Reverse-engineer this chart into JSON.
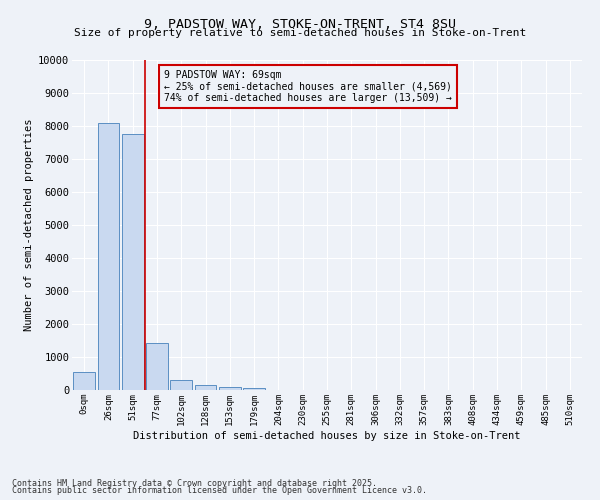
{
  "title1": "9, PADSTOW WAY, STOKE-ON-TRENT, ST4 8SU",
  "title2": "Size of property relative to semi-detached houses in Stoke-on-Trent",
  "xlabel": "Distribution of semi-detached houses by size in Stoke-on-Trent",
  "ylabel": "Number of semi-detached properties",
  "bar_labels": [
    "0sqm",
    "26sqm",
    "51sqm",
    "77sqm",
    "102sqm",
    "128sqm",
    "153sqm",
    "179sqm",
    "204sqm",
    "230sqm",
    "255sqm",
    "281sqm",
    "306sqm",
    "332sqm",
    "357sqm",
    "383sqm",
    "408sqm",
    "434sqm",
    "459sqm",
    "485sqm",
    "510sqm"
  ],
  "bar_values": [
    560,
    8100,
    7750,
    1430,
    310,
    150,
    100,
    50,
    0,
    0,
    0,
    0,
    0,
    0,
    0,
    0,
    0,
    0,
    0,
    0,
    0
  ],
  "bar_color": "#c9d9f0",
  "bar_edge_color": "#5a8fc3",
  "property_line_x": 2.5,
  "property_sqm": 69,
  "pct_smaller": 25,
  "n_smaller": 4569,
  "pct_larger": 74,
  "n_larger": 13509,
  "annotation_box_color": "#cc0000",
  "ylim": [
    0,
    10000
  ],
  "yticks": [
    0,
    1000,
    2000,
    3000,
    4000,
    5000,
    6000,
    7000,
    8000,
    9000,
    10000
  ],
  "footer1": "Contains HM Land Registry data © Crown copyright and database right 2025.",
  "footer2": "Contains public sector information licensed under the Open Government Licence v3.0.",
  "bg_color": "#eef2f8",
  "grid_color": "#ffffff"
}
